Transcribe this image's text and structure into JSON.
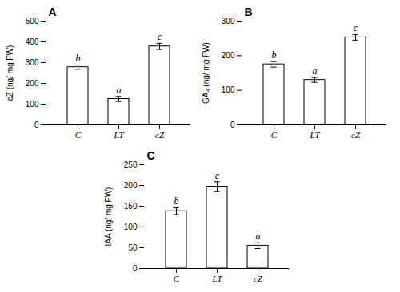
{
  "chart_data": [
    {
      "type": "bar",
      "title": "A",
      "categories": [
        "C",
        "LT",
        "cZ"
      ],
      "values": [
        278,
        125,
        378
      ],
      "errors": [
        10,
        12,
        15
      ],
      "annotations": [
        "b",
        "a",
        "c"
      ],
      "ylabel": "cZ (ng/ mg FW)",
      "color": "#ffffff",
      "ylim": [
        0,
        500
      ],
      "yticks": [
        0,
        100,
        200,
        300,
        400,
        500
      ],
      "grid": false
    },
    {
      "type": "bar",
      "title": "B",
      "categories": [
        "C",
        "LT",
        "cZ"
      ],
      "values": [
        175,
        130,
        253
      ],
      "errors": [
        8,
        7,
        8
      ],
      "annotations": [
        "b",
        "a",
        "c"
      ],
      "ylabel": "GA₄ (ng/ mg FW)",
      "color": "#ffffff",
      "ylim": [
        0,
        300
      ],
      "yticks": [
        0,
        100,
        200,
        300
      ],
      "grid": false
    },
    {
      "type": "bar",
      "title": "C",
      "categories": [
        "C",
        "LT",
        "cZ"
      ],
      "values": [
        138,
        197,
        55
      ],
      "errors": [
        8,
        12,
        7
      ],
      "annotations": [
        "b",
        "c",
        "a"
      ],
      "ylabel": "IAA (ng/ mg FW)",
      "color": "#ffffff",
      "ylim": [
        0,
        250
      ],
      "yticks": [
        0,
        50,
        100,
        150,
        200,
        250
      ],
      "grid": false
    }
  ]
}
